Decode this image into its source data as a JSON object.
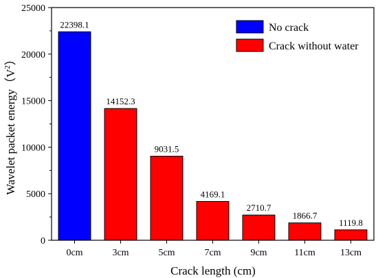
{
  "chart_data": {
    "type": "bar",
    "categories": [
      "0cm",
      "3cm",
      "5cm",
      "7cm",
      "9cm",
      "11cm",
      "13cm"
    ],
    "values": [
      22398.1,
      14152.3,
      9031.5,
      4169.1,
      2710.7,
      1866.7,
      1119.8
    ],
    "value_labels": [
      "22398.1",
      "14152.3",
      "9031.5",
      "4169.1",
      "2710.7",
      "1866.7",
      "1119.8"
    ],
    "bar_series": [
      "No crack",
      "Crack without water",
      "Crack without water",
      "Crack without water",
      "Crack without water",
      "Crack without water",
      "Crack without water"
    ],
    "series": [
      {
        "name": "No crack",
        "color": "#0000ff"
      },
      {
        "name": "Crack without water",
        "color": "#ff0000"
      }
    ],
    "xlabel": "Crack length (cm)",
    "ylabel_main": "Wavelet packet energy（V",
    "ylabel_sup": "2",
    "ylabel_close": "）",
    "ylim": [
      0,
      25000
    ],
    "yticks": [
      0,
      5000,
      10000,
      15000,
      20000,
      25000
    ],
    "ytick_labels": [
      "0",
      "5000",
      "10000",
      "15000",
      "20000",
      "25000"
    ],
    "legend_position": "top-right",
    "grid": false
  }
}
